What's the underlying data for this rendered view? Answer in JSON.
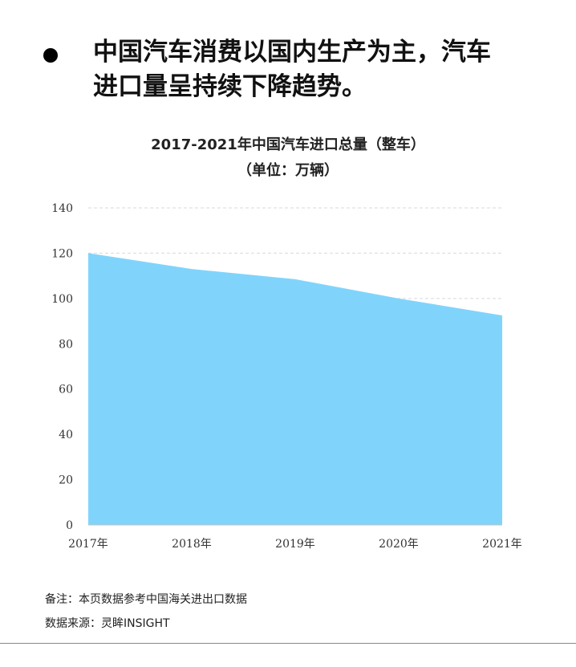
{
  "headline": {
    "line1": "中国汽车消费以国内生产为主，汽车",
    "line2": "进口量呈持续下降趋势。"
  },
  "chart_data": {
    "type": "area",
    "title": "2017-2021年中国汽车进口总量（整车）",
    "subtitle": "（单位：万辆）",
    "categories": [
      "2017年",
      "2018年",
      "2019年",
      "2020年",
      "2021年"
    ],
    "values": [
      120,
      113,
      108.5,
      100,
      92.5
    ],
    "ylim": [
      0,
      140
    ],
    "yticks": [
      0,
      20,
      40,
      60,
      80,
      100,
      120,
      140
    ],
    "grid": true,
    "fill_color": "#80d4fb"
  },
  "footer": {
    "note": "备注：本页数据参考中国海关进出口数据",
    "source": "数据来源：灵眸INSIGHT"
  }
}
